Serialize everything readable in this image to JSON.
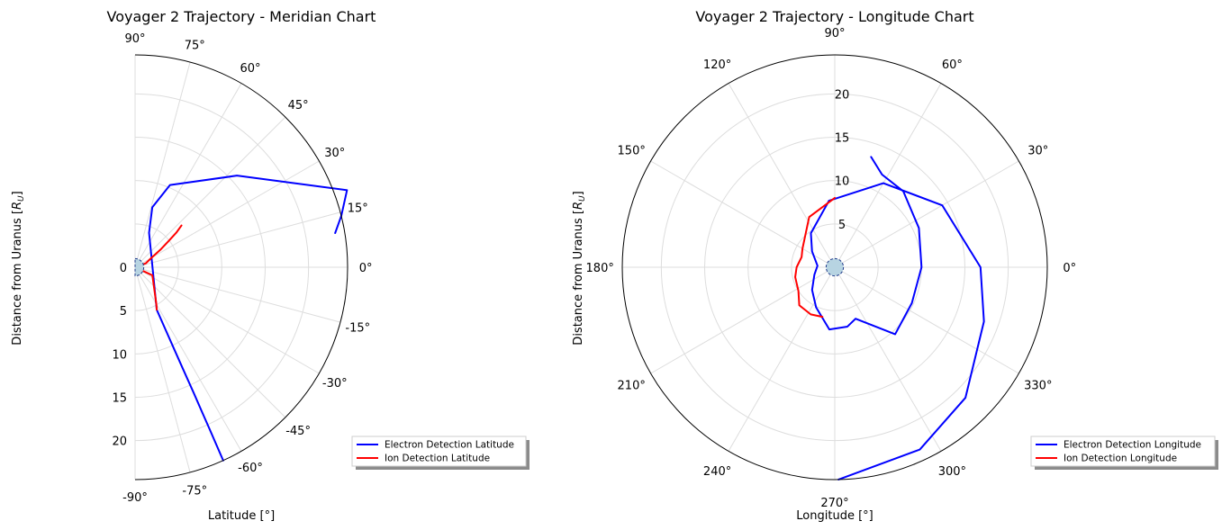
{
  "chart_data": [
    {
      "type": "line",
      "projection": "polar-half",
      "title": "Voyager 2 Trajectory - Meridian Chart",
      "xlabel": "Latitude [°]",
      "ylabel": "Distance from Uranus [R_U]",
      "ylabel_main": "Distance from Uranus [",
      "ylabel_math": "R",
      "ylabel_sub": "U",
      "ylabel_close": "]",
      "theta_range": [
        -90,
        90
      ],
      "r_range": [
        0,
        24.5
      ],
      "angle_ticks": [
        {
          "value": 90,
          "label": "90°"
        },
        {
          "value": 75,
          "label": "75°"
        },
        {
          "value": 60,
          "label": "60°"
        },
        {
          "value": 45,
          "label": "45°"
        },
        {
          "value": 30,
          "label": "30°"
        },
        {
          "value": 15,
          "label": "15°"
        },
        {
          "value": 0,
          "label": "0°"
        },
        {
          "value": -15,
          "label": "-15°"
        },
        {
          "value": -30,
          "label": "-30°"
        },
        {
          "value": -45,
          "label": "-45°"
        },
        {
          "value": -60,
          "label": "-60°"
        },
        {
          "value": -75,
          "label": "-75°"
        },
        {
          "value": -90,
          "label": "-90°"
        }
      ],
      "radial_ticks": [
        {
          "value": 0,
          "label": "0"
        },
        {
          "value": 5,
          "label": "5"
        },
        {
          "value": 10,
          "label": "10"
        },
        {
          "value": 15,
          "label": "15"
        },
        {
          "value": 20,
          "label": "20"
        }
      ],
      "grid": true,
      "legend_position": "lower-right",
      "planet_radius": 1,
      "series": [
        {
          "name": "Electron Detection Latitude",
          "color": "#0000ff",
          "points": [
            [
              9.7,
              23.4
            ],
            [
              14.0,
              24.5
            ],
            [
              20.0,
              26.0
            ],
            [
              42.0,
              15.8
            ],
            [
              67.0,
              10.3
            ],
            [
              74.0,
              7.2
            ],
            [
              68.0,
              4.3
            ],
            [
              -63.0,
              5.5
            ],
            [
              -64.0,
              8.0
            ],
            [
              -64.5,
              10.5
            ],
            [
              -64.8,
              13.0
            ],
            [
              -65.0,
              16.0
            ],
            [
              -65.2,
              18.5
            ],
            [
              -65.3,
              20.5
            ],
            [
              -65.5,
              24.5
            ]
          ]
        },
        {
          "name": "Ion Detection Latitude",
          "color": "#ff0000",
          "points": [
            [
              42.0,
              7.2
            ],
            [
              40.0,
              6.2
            ],
            [
              38.0,
              4.9
            ],
            [
              35.0,
              3.65
            ],
            [
              30.0,
              2.2
            ],
            [
              20.0,
              1.3
            ],
            [
              0.0,
              0.0
            ],
            [
              -25.0,
              2.2
            ],
            [
              -60.0,
              4.9
            ],
            [
              -63.0,
              5.5
            ]
          ]
        }
      ]
    },
    {
      "type": "line",
      "projection": "polar",
      "title": "Voyager 2 Trajectory - Longitude Chart",
      "xlabel": "Longitude [°]",
      "ylabel": "Distance from Uranus [R_U]",
      "ylabel_main": "Distance from Uranus [",
      "ylabel_math": "R",
      "ylabel_sub": "U",
      "ylabel_close": "]",
      "r_range": [
        0,
        24.5
      ],
      "angle_ticks": [
        {
          "value": 0,
          "label": "0°"
        },
        {
          "value": 30,
          "label": "30°"
        },
        {
          "value": 60,
          "label": "60°"
        },
        {
          "value": 90,
          "label": "90°"
        },
        {
          "value": 120,
          "label": "120°"
        },
        {
          "value": 150,
          "label": "150°"
        },
        {
          "value": 180,
          "label": "180°"
        },
        {
          "value": 210,
          "label": "210°"
        },
        {
          "value": 240,
          "label": "240°"
        },
        {
          "value": 270,
          "label": "270°"
        },
        {
          "value": 300,
          "label": "300°"
        },
        {
          "value": 330,
          "label": "330°"
        }
      ],
      "radial_ticks": [
        {
          "value": 5,
          "label": "5"
        },
        {
          "value": 10,
          "label": "10"
        },
        {
          "value": 15,
          "label": "15"
        },
        {
          "value": 20,
          "label": "20"
        }
      ],
      "grid": true,
      "legend_position": "lower-right",
      "planet_radius": 1,
      "series": [
        {
          "name": "Electron Detection Longitude",
          "color": "#0000ff",
          "points": [
            [
              71.8,
              13.4
            ],
            [
              63.0,
              12.0
            ],
            [
              48.0,
              11.8
            ],
            [
              25.0,
              10.7
            ],
            [
              0.0,
              10.0
            ],
            [
              -25.0,
              9.8
            ],
            [
              -48.0,
              10.4
            ],
            [
              -68.0,
              6.4
            ],
            [
              -78.0,
              7.0
            ],
            [
              -95.0,
              7.2
            ],
            [
              -115.0,
              5.1
            ],
            [
              -135.0,
              3.7
            ],
            [
              -160.0,
              2.5
            ],
            [
              -185.0,
              2.0
            ],
            [
              -215.0,
              3.2
            ],
            [
              -235.0,
              4.8
            ],
            [
              -265.0,
              7.7
            ],
            [
              -300.0,
              11.2
            ],
            [
              -330.0,
              14.3
            ],
            [
              -360.0,
              16.8
            ],
            [
              -380.0,
              18.3
            ],
            [
              -405.0,
              21.3
            ],
            [
              -425.0,
              23.2
            ],
            [
              -449.0,
              24.5
            ]
          ]
        },
        {
          "name": "Ion Detection Longitude",
          "color": "#ff0000",
          "points": [
            [
              90.0,
              8.0
            ],
            [
              117.0,
              6.5
            ],
            [
              150.0,
              4.3
            ],
            [
              163.0,
              4.0
            ],
            [
              180.0,
              4.4
            ],
            [
              194.0,
              4.7
            ],
            [
              213.0,
              5.0
            ],
            [
              227.0,
              6.0
            ],
            [
              243.0,
              6.1
            ],
            [
              256.0,
              5.9
            ]
          ]
        }
      ]
    }
  ]
}
